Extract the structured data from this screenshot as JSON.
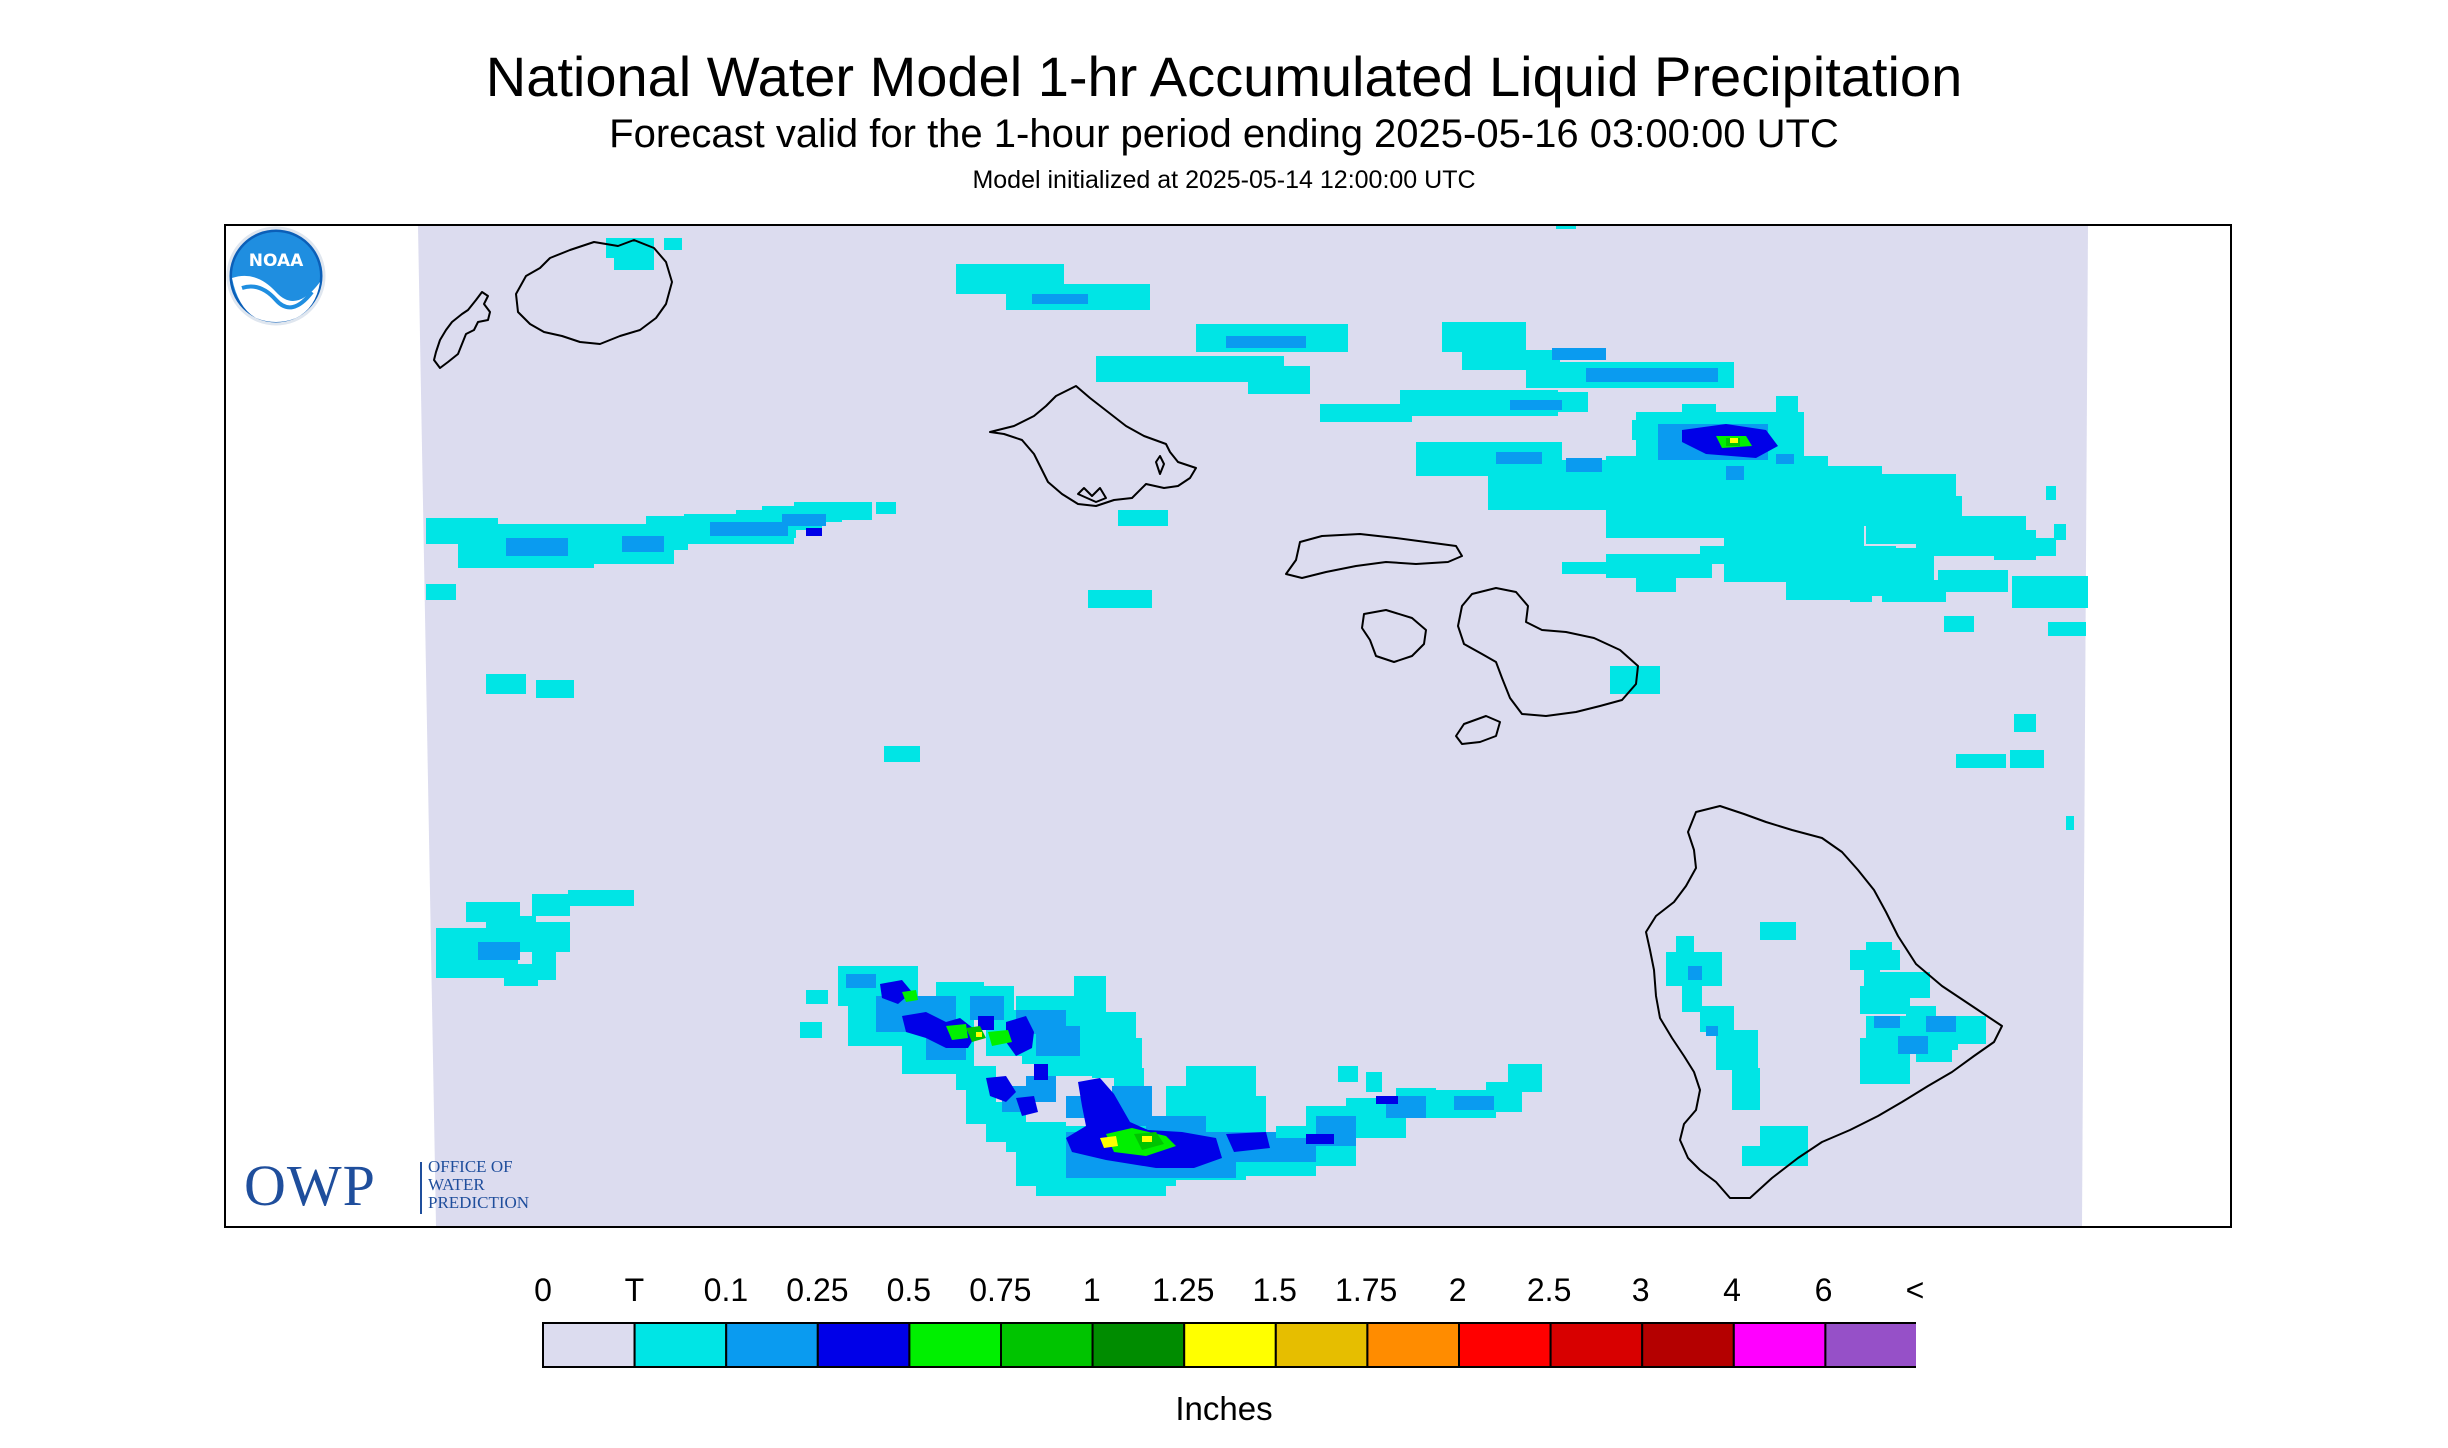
{
  "title": "National Water Model 1-hr Accumulated Liquid Precipitation",
  "subtitle": "Forecast valid for the 1-hour period ending 2025-05-16 03:00:00 UTC",
  "init_line": "Model initialized at 2025-05-14 12:00:00 UTC",
  "owp_logo": {
    "abbr": "OWP",
    "text": "OFFICE OF\nWATER\nPREDICTION"
  },
  "noaa_logo": {
    "text": "NOAA"
  },
  "legend": {
    "labels": [
      "0",
      "T",
      "0.1",
      "0.25",
      "0.5",
      "0.75",
      "1",
      "1.25",
      "1.5",
      "1.75",
      "2",
      "2.5",
      "3",
      "4",
      "6",
      "<"
    ],
    "colors": [
      "#dcdcef",
      "#00e5e5",
      "#0a9bf0",
      "#0000e8",
      "#00f000",
      "#00c400",
      "#008c00",
      "#ffff00",
      "#e6be00",
      "#ff8c00",
      "#ff0000",
      "#d80000",
      "#b40000",
      "#ff00ff",
      "#9650c8"
    ],
    "units": "Inches"
  },
  "map_colors": {
    "no_data": "#ffffff",
    "domain": "#dcdcef",
    "coastline": "#000000"
  }
}
